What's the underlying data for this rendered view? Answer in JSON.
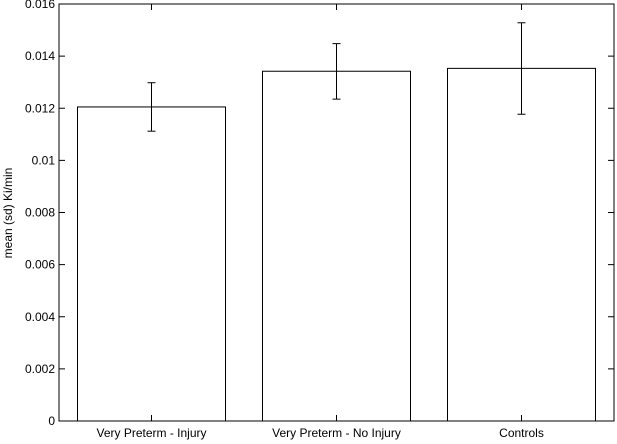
{
  "chart_data": {
    "type": "bar",
    "title": "",
    "xlabel": "",
    "ylabel": "mean (sd) Ki/min",
    "categories": [
      "Very Preterm - Injury",
      "Very Preterm - No Injury",
      "Controls"
    ],
    "values": [
      0.01205,
      0.01342,
      0.01353
    ],
    "error": [
      [
        0.01112,
        0.01298
      ],
      [
        0.01235,
        0.01448
      ],
      [
        0.01177,
        0.01528
      ]
    ],
    "ylim": [
      0,
      0.016
    ],
    "yticks": [
      0,
      0.002,
      0.004,
      0.006,
      0.008,
      0.01,
      0.012,
      0.014,
      0.016
    ],
    "ytick_labels": [
      "0",
      "0.002",
      "0.004",
      "0.006",
      "0.008",
      "0.01",
      "0.012",
      "0.014",
      "0.016"
    ],
    "grid": false,
    "legend": "none",
    "bar_fill": "#ffffff",
    "bar_stroke": "#000000"
  }
}
